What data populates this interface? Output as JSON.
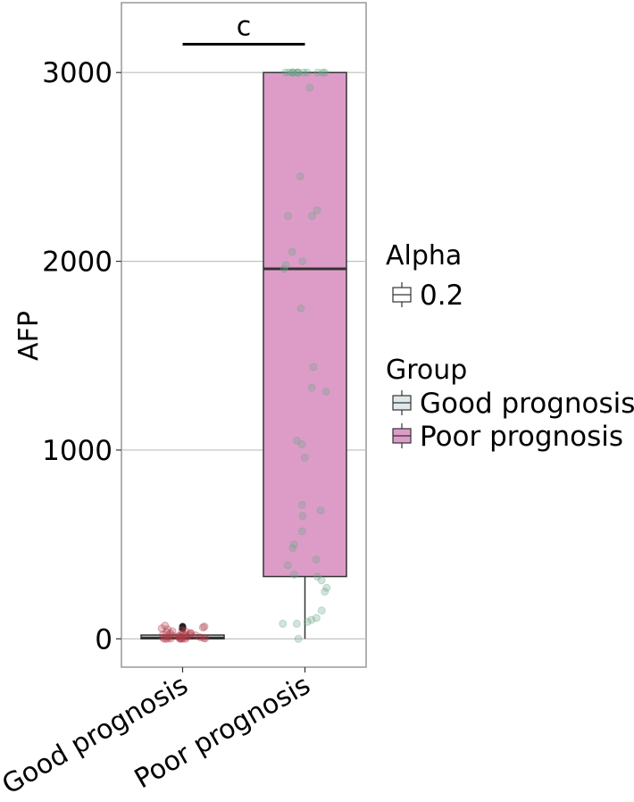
{
  "chart_data": {
    "type": "box",
    "ylabel": "AFP",
    "xlabel": "",
    "ylim": [
      -150,
      3370
    ],
    "yticks": [
      0,
      1000,
      2000,
      3000
    ],
    "categories": [
      "Good prognosis",
      "Poor prognosis"
    ],
    "grid": true,
    "significance": {
      "label": "c",
      "between": [
        "Good prognosis",
        "Poor prognosis"
      ],
      "y": 3150
    },
    "boxes": [
      {
        "group": "Good prognosis",
        "min": 0,
        "q1": 0,
        "median": 5,
        "q3": 20,
        "max": 25,
        "fill": "#dfe8ea",
        "point_color": "#b03a48",
        "outliers": [
          55,
          65
        ]
      },
      {
        "group": "Poor prognosis",
        "min": 0,
        "q1": 330,
        "median": 1960,
        "q3": 3000,
        "max": 3000,
        "fill": "#dd9cc8",
        "point_color": "#6aa789",
        "outliers": []
      }
    ],
    "points": [
      {
        "group": "Good prognosis",
        "values": [
          0,
          0,
          0,
          2,
          3,
          5,
          5,
          8,
          10,
          12,
          15,
          18,
          20,
          22,
          25,
          28,
          30,
          35,
          40,
          45,
          50,
          55,
          60,
          65,
          70,
          0,
          5,
          10,
          15,
          20,
          30,
          40,
          0,
          2,
          8
        ]
      },
      {
        "group": "Poor prognosis",
        "values": [
          3000,
          3000,
          3000,
          3000,
          3000,
          3000,
          3000,
          3000,
          3000,
          3000,
          3000,
          3000,
          3000,
          2920,
          2450,
          2270,
          2240,
          2240,
          2050,
          2000,
          1980,
          1960,
          1750,
          1440,
          1330,
          1310,
          1050,
          1030,
          960,
          710,
          680,
          650,
          570,
          500,
          480,
          420,
          390,
          340,
          330,
          310,
          270,
          250,
          150,
          110,
          100,
          90,
          80,
          80,
          0
        ]
      }
    ],
    "legend": {
      "position": "right",
      "alpha_title": "Alpha",
      "alpha_items": [
        "0.2"
      ],
      "group_title": "Group",
      "group_items": [
        {
          "label": "Good prognosis",
          "color": "#dfe8ea"
        },
        {
          "label": "Poor prognosis",
          "color": "#dd9cc8"
        }
      ]
    }
  }
}
